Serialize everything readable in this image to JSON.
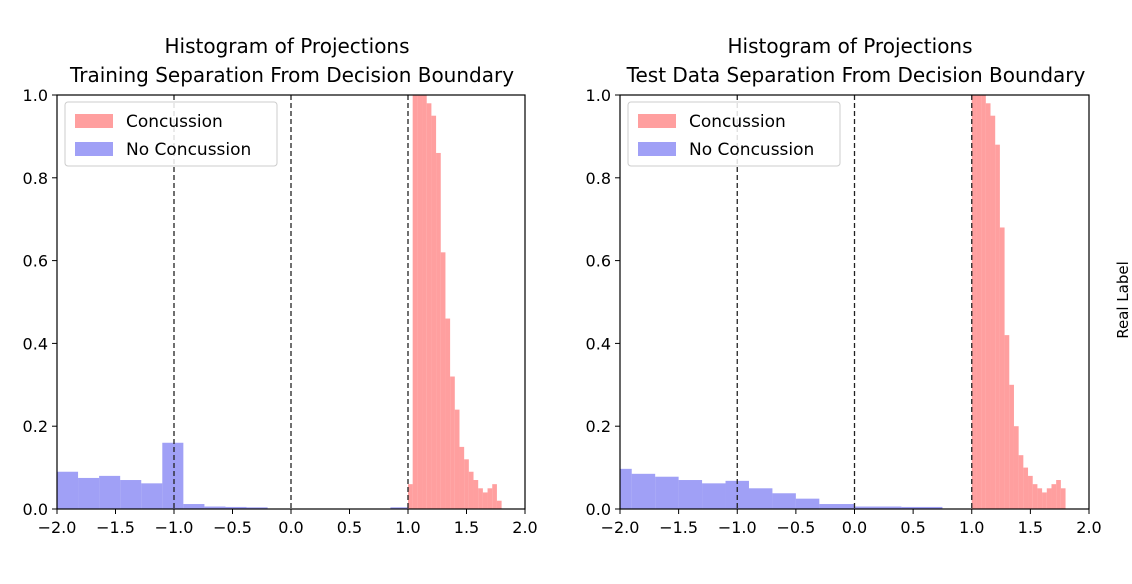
{
  "colors": {
    "concussion": "#ff7a7a",
    "no_concussion": "#7b7bf2",
    "axis": "#000000",
    "vline": "#222222"
  },
  "side_label": "Real Label",
  "chart_data": [
    {
      "type": "histogram",
      "title": "Histogram of Projections",
      "subtitle": "Training Separation From Decision Boundary",
      "xlabel": "",
      "ylabel": "",
      "xlim": [
        -2.0,
        2.0
      ],
      "ylim": [
        0.0,
        1.0
      ],
      "xticks": [
        "−2.0",
        "−1.5",
        "−1.0",
        "−0.5",
        "0.0",
        "0.5",
        "1.0",
        "1.5",
        "2.0"
      ],
      "yticks": [
        "0.0",
        "0.2",
        "0.4",
        "0.6",
        "0.8",
        "1.0"
      ],
      "dashed_vlines": [
        -1.0,
        0.0,
        1.0
      ],
      "legend": {
        "placement": "top-left",
        "entries": [
          "Concussion",
          "No Concussion"
        ]
      },
      "series": [
        {
          "name": "Concussion",
          "bins": [
            [
              1.0,
              1.04,
              0.06
            ],
            [
              1.04,
              1.08,
              1.0
            ],
            [
              1.08,
              1.12,
              1.0
            ],
            [
              1.12,
              1.16,
              1.0
            ],
            [
              1.16,
              1.2,
              0.98
            ],
            [
              1.2,
              1.24,
              0.95
            ],
            [
              1.24,
              1.28,
              0.86
            ],
            [
              1.28,
              1.32,
              0.62
            ],
            [
              1.32,
              1.36,
              0.46
            ],
            [
              1.36,
              1.4,
              0.32
            ],
            [
              1.4,
              1.44,
              0.24
            ],
            [
              1.44,
              1.48,
              0.15
            ],
            [
              1.48,
              1.52,
              0.12
            ],
            [
              1.52,
              1.56,
              0.09
            ],
            [
              1.56,
              1.6,
              0.07
            ],
            [
              1.6,
              1.64,
              0.05
            ],
            [
              1.64,
              1.68,
              0.04
            ],
            [
              1.68,
              1.72,
              0.05
            ],
            [
              1.72,
              1.76,
              0.06
            ],
            [
              1.76,
              1.8,
              0.02
            ]
          ]
        },
        {
          "name": "No Concussion",
          "bins": [
            [
              -2.0,
              -1.82,
              0.09
            ],
            [
              -1.82,
              -1.64,
              0.075
            ],
            [
              -1.64,
              -1.46,
              0.08
            ],
            [
              -1.46,
              -1.28,
              0.07
            ],
            [
              -1.28,
              -1.1,
              0.062
            ],
            [
              -1.1,
              -0.92,
              0.16
            ],
            [
              -0.92,
              -0.74,
              0.012
            ],
            [
              -0.74,
              -0.56,
              0.006
            ],
            [
              -0.56,
              -0.38,
              0.005
            ],
            [
              -0.38,
              -0.2,
              0.004
            ],
            [
              0.85,
              1.0,
              0.004
            ]
          ]
        }
      ]
    },
    {
      "type": "histogram",
      "title": "Histogram of Projections",
      "subtitle": "Test Data Separation From Decision Boundary",
      "xlabel": "",
      "ylabel": "",
      "xlim": [
        -2.0,
        2.0
      ],
      "ylim": [
        0.0,
        1.0
      ],
      "xticks": [
        "−2.0",
        "−1.5",
        "−1.0",
        "−0.5",
        "0.0",
        "0.5",
        "1.0",
        "1.5",
        "2.0"
      ],
      "yticks": [
        "0.0",
        "0.2",
        "0.4",
        "0.6",
        "0.8",
        "1.0"
      ],
      "dashed_vlines": [
        -1.0,
        0.0,
        1.0
      ],
      "legend": {
        "placement": "top-left",
        "entries": [
          "Concussion",
          "No Concussion"
        ]
      },
      "series": [
        {
          "name": "Concussion",
          "bins": [
            [
              1.0,
              1.04,
              1.0
            ],
            [
              1.04,
              1.08,
              1.0
            ],
            [
              1.08,
              1.12,
              1.0
            ],
            [
              1.12,
              1.16,
              0.98
            ],
            [
              1.16,
              1.2,
              0.95
            ],
            [
              1.2,
              1.24,
              0.88
            ],
            [
              1.24,
              1.28,
              0.68
            ],
            [
              1.28,
              1.32,
              0.42
            ],
            [
              1.32,
              1.36,
              0.3
            ],
            [
              1.36,
              1.4,
              0.2
            ],
            [
              1.4,
              1.44,
              0.13
            ],
            [
              1.44,
              1.48,
              0.1
            ],
            [
              1.48,
              1.52,
              0.08
            ],
            [
              1.52,
              1.56,
              0.06
            ],
            [
              1.56,
              1.6,
              0.05
            ],
            [
              1.6,
              1.64,
              0.04
            ],
            [
              1.64,
              1.68,
              0.05
            ],
            [
              1.68,
              1.72,
              0.06
            ],
            [
              1.72,
              1.76,
              0.07
            ],
            [
              1.76,
              1.8,
              0.05
            ]
          ]
        },
        {
          "name": "No Concussion",
          "bins": [
            [
              -2.0,
              -1.9,
              0.097
            ],
            [
              -1.9,
              -1.7,
              0.085
            ],
            [
              -1.7,
              -1.5,
              0.078
            ],
            [
              -1.5,
              -1.3,
              0.07
            ],
            [
              -1.3,
              -1.1,
              0.062
            ],
            [
              -1.1,
              -0.9,
              0.068
            ],
            [
              -0.9,
              -0.7,
              0.05
            ],
            [
              -0.7,
              -0.5,
              0.038
            ],
            [
              -0.5,
              -0.3,
              0.025
            ],
            [
              -0.3,
              0.0,
              0.012
            ],
            [
              0.0,
              0.4,
              0.006
            ],
            [
              0.4,
              0.75,
              0.005
            ]
          ]
        }
      ]
    }
  ]
}
